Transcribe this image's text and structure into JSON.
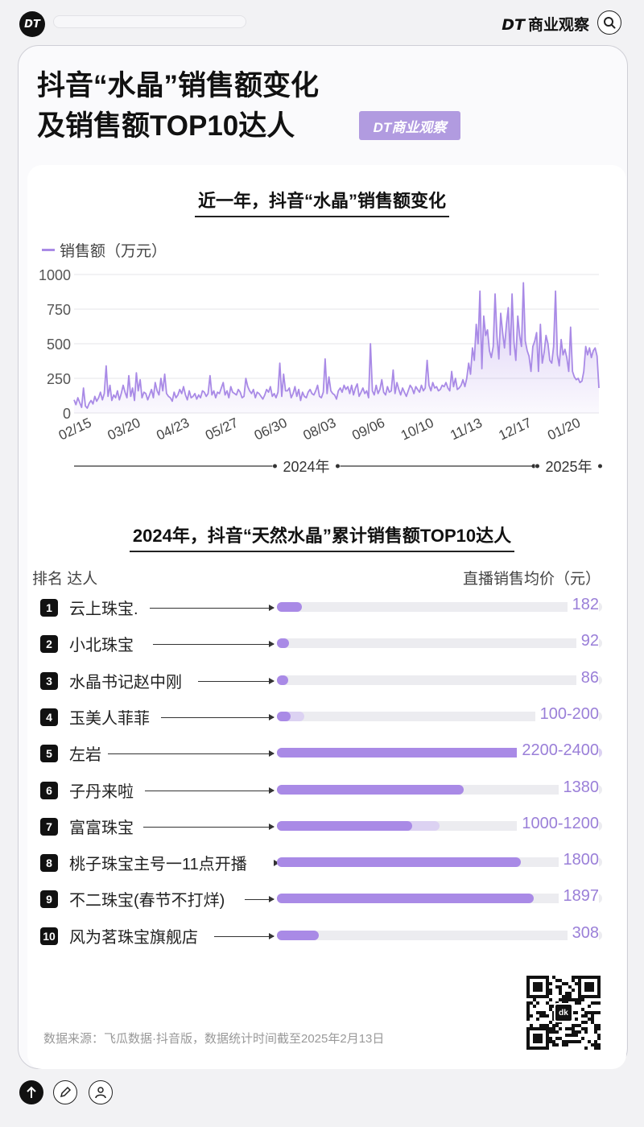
{
  "topbar": {
    "logo": "DT",
    "brand_dt": "DT",
    "brand_name": "商业观察"
  },
  "title": {
    "line1": "抖音“水晶”销售额变化",
    "line2": "及销售额TOP10达人",
    "badge": "DT商业观察"
  },
  "chart_data": [
    {
      "type": "line",
      "title": "近一年，抖音“水晶”销售额变化",
      "legend": "销售额（万元）",
      "ylim": [
        0,
        1000
      ],
      "yticks": [
        0,
        250,
        500,
        750,
        1000
      ],
      "xticks": [
        "02/15",
        "03/20",
        "04/23",
        "05/27",
        "06/30",
        "08/03",
        "09/06",
        "10/10",
        "11/13",
        "12/17",
        "01/20"
      ],
      "year_labels": [
        "2024年",
        "2025年"
      ],
      "x_start": "2024-02-13",
      "x_end": "2025-02-12",
      "series": [
        {
          "name": "销售额",
          "values": [
            95,
            60,
            110,
            75,
            40,
            180,
            50,
            35,
            70,
            90,
            65,
            120,
            85,
            110,
            150,
            95,
            140,
            340,
            120,
            200,
            90,
            130,
            110,
            160,
            95,
            140,
            200,
            150,
            110,
            270,
            120,
            180,
            90,
            290,
            160,
            240,
            110,
            150,
            140,
            95,
            130,
            170,
            110,
            220,
            160,
            130,
            250,
            160,
            280,
            140,
            120,
            110,
            85,
            150,
            110,
            130,
            170,
            140,
            190,
            130,
            95,
            160,
            110,
            120,
            140,
            100,
            130,
            110,
            160,
            150,
            120,
            140,
            270,
            130,
            160,
            110,
            150,
            140,
            180,
            220,
            130,
            160,
            110,
            190,
            150,
            140,
            130,
            170,
            150,
            110,
            120,
            250,
            190,
            160,
            140,
            170,
            110,
            150,
            140,
            120,
            100,
            130,
            170,
            150,
            190,
            120,
            140,
            110,
            150,
            360,
            120,
            280,
            160,
            160,
            180,
            110,
            140,
            190,
            120,
            170,
            90,
            150,
            120,
            110,
            150,
            170,
            140,
            130,
            160,
            200,
            120,
            110,
            150,
            390,
            140,
            260,
            160,
            140,
            130,
            100,
            160,
            180,
            150,
            200,
            170,
            190,
            140,
            200,
            130,
            180,
            210,
            120,
            150,
            180,
            140,
            160,
            110,
            500,
            160,
            130,
            200,
            140,
            170,
            240,
            150,
            130,
            190,
            150,
            160,
            310,
            140,
            220,
            170,
            130,
            180,
            150,
            120,
            160,
            200,
            180,
            140,
            190,
            170,
            150,
            200,
            160,
            180,
            380,
            200,
            160,
            220,
            180,
            190,
            160,
            170,
            200,
            190,
            220,
            180,
            160,
            300,
            190,
            250,
            170,
            180,
            200,
            240,
            190,
            250,
            360,
            280,
            470,
            380,
            640,
            500,
            880,
            320,
            700,
            560,
            600,
            450,
            400,
            480,
            860,
            550,
            390,
            720,
            580,
            470,
            640,
            760,
            420,
            860,
            510,
            380,
            700,
            560,
            480,
            940,
            520,
            450,
            410,
            300,
            480,
            520,
            580,
            300,
            640,
            360,
            440,
            560,
            500,
            380,
            360,
            480,
            880,
            420,
            340,
            530,
            420,
            460,
            400,
            300,
            620,
            300,
            260,
            240,
            250,
            220,
            230,
            300,
            480,
            420,
            470,
            400,
            450,
            470,
            410,
            180
          ]
        }
      ]
    },
    {
      "type": "bar",
      "title": "2024年，抖音“天然水晶”累计销售额TOP10达人",
      "header_left": "排名  达人",
      "header_right": "直播销售均价（元）",
      "xlim": [
        0,
        2400
      ],
      "rows": [
        {
          "rank": "1",
          "name": "云上珠宝.",
          "price": "182",
          "low": 182,
          "high": 182
        },
        {
          "rank": "2",
          "name": "小北珠宝",
          "price": "92",
          "low": 92,
          "high": 92
        },
        {
          "rank": "3",
          "name": "水晶书记赵中刚",
          "price": "86",
          "low": 86,
          "high": 86
        },
        {
          "rank": "4",
          "name": "玉美人菲菲",
          "price": "100-200",
          "low": 100,
          "high": 200
        },
        {
          "rank": "5",
          "name": "左岩",
          "price": "2200-2400",
          "low": 2200,
          "high": 2400
        },
        {
          "rank": "6",
          "name": "子丹来啦",
          "price": "1380",
          "low": 1380,
          "high": 1380
        },
        {
          "rank": "7",
          "name": "富富珠宝",
          "price": "1000-1200",
          "low": 1000,
          "high": 1200
        },
        {
          "rank": "8",
          "name": "桃子珠宝主号一11点开播",
          "price": "1800",
          "low": 1800,
          "high": 1800
        },
        {
          "rank": "9",
          "name": "不二珠宝(春节不打烊)",
          "price": "1897",
          "low": 1897,
          "high": 1897
        },
        {
          "rank": "10",
          "name": "风为茗珠宝旗舰店",
          "price": "308",
          "low": 308,
          "high": 308
        }
      ]
    }
  ],
  "source": "数据来源：飞瓜数据·抖音版，数据统计时间截至2025年2月13日",
  "colors": {
    "accent": "#a98ae6",
    "accent_light": "#dcd2f2",
    "price_text": "#9a7fd8"
  }
}
